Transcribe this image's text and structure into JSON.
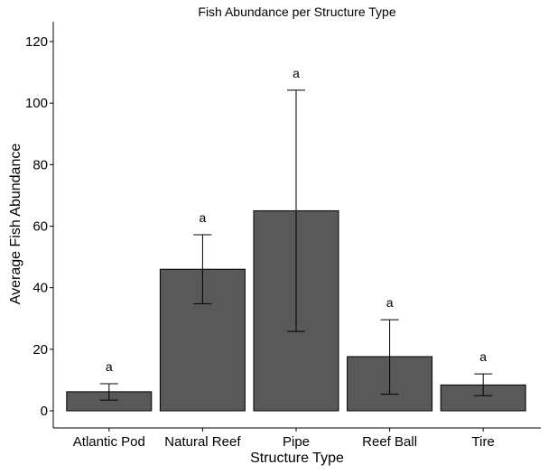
{
  "chart_data": {
    "type": "bar",
    "title": "Fish Abundance per Structure Type",
    "xlabel": "Structure Type",
    "ylabel": "Average Fish Abundance",
    "categories": [
      "Atlantic Pod",
      "Natural Reef",
      "Pipe",
      "Reef Ball",
      "Tire"
    ],
    "values": [
      6.2,
      46.0,
      65.0,
      17.6,
      8.4
    ],
    "error_low": [
      3.5,
      34.8,
      25.8,
      5.4,
      4.9
    ],
    "error_high": [
      8.8,
      57.2,
      104.2,
      29.6,
      12.0
    ],
    "significance_labels": [
      "a",
      "a",
      "a",
      "a",
      "a"
    ],
    "ylim": [
      0,
      120
    ],
    "yticks": [
      0,
      20,
      40,
      60,
      80,
      100,
      120
    ],
    "grid": false,
    "legend": "none",
    "colors": {
      "bar_fill": "#595959",
      "bar_stroke": "#000000",
      "axis": "#000000"
    }
  }
}
